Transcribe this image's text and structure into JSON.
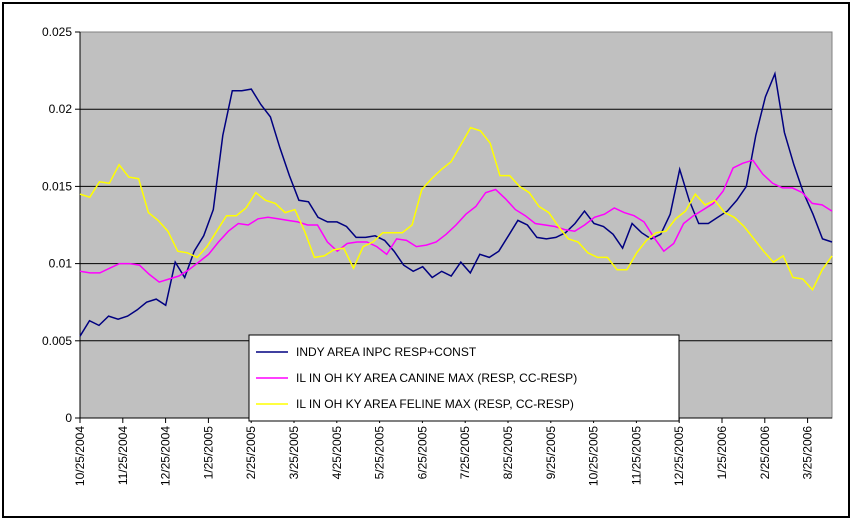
{
  "chart_data": {
    "type": "line",
    "title": "",
    "xlabel": "",
    "ylabel": "",
    "ylim": [
      0,
      0.025
    ],
    "yticks": [
      "0",
      "0.005",
      "0.01",
      "0.015",
      "0.02",
      "0.025"
    ],
    "xticks": [
      "10/25/2004",
      "11/25/2004",
      "12/25/2004",
      "1/25/2005",
      "2/25/2005",
      "3/25/2005",
      "4/25/2005",
      "5/25/2005",
      "6/25/2005",
      "7/25/2005",
      "8/25/2005",
      "9/25/2005",
      "10/25/2005",
      "11/25/2005",
      "12/25/2005",
      "1/25/2006",
      "2/25/2006",
      "3/25/2006"
    ],
    "grid": true,
    "plot_background": "#c0c0c0",
    "legend_position": "bottom-center",
    "series": [
      {
        "name": "INDY AREA INPC RESP+CONST",
        "color": "#000080",
        "values": [
          0.0053,
          0.0063,
          0.006,
          0.0066,
          0.0064,
          0.0066,
          0.007,
          0.0075,
          0.0077,
          0.0073,
          0.0101,
          0.0091,
          0.0108,
          0.0118,
          0.0135,
          0.0183,
          0.0212,
          0.0212,
          0.0213,
          0.0203,
          0.0195,
          0.0175,
          0.0157,
          0.0141,
          0.014,
          0.013,
          0.0127,
          0.0127,
          0.0124,
          0.0117,
          0.0117,
          0.0118,
          0.0115,
          0.0108,
          0.0099,
          0.0095,
          0.0098,
          0.0091,
          0.0095,
          0.0092,
          0.0101,
          0.0094,
          0.0106,
          0.0104,
          0.0108,
          0.0118,
          0.0128,
          0.0125,
          0.0117,
          0.0116,
          0.0117,
          0.012,
          0.0126,
          0.0134,
          0.0126,
          0.0124,
          0.0119,
          0.011,
          0.0126,
          0.012,
          0.0116,
          0.0119,
          0.0132,
          0.0161,
          0.0141,
          0.0126,
          0.0126,
          0.013,
          0.0134,
          0.0141,
          0.015,
          0.0183,
          0.0208,
          0.0223,
          0.0185,
          0.0164,
          0.0146,
          0.0132,
          0.0116,
          0.0114
        ]
      },
      {
        "name": "IL IN OH KY AREA CANINE MAX (RESP, CC-RESP)",
        "color": "#ff00ff",
        "values": [
          0.0095,
          0.0094,
          0.0094,
          0.0097,
          0.01,
          0.01,
          0.0099,
          0.0093,
          0.0088,
          0.009,
          0.0092,
          0.0096,
          0.0101,
          0.0106,
          0.0114,
          0.0121,
          0.0126,
          0.0125,
          0.0129,
          0.013,
          0.0129,
          0.0128,
          0.0127,
          0.0125,
          0.0125,
          0.0114,
          0.0108,
          0.0113,
          0.0114,
          0.0114,
          0.0111,
          0.0106,
          0.0116,
          0.0115,
          0.0111,
          0.0112,
          0.0114,
          0.0119,
          0.0125,
          0.0132,
          0.0137,
          0.0146,
          0.0148,
          0.0142,
          0.0135,
          0.0131,
          0.0126,
          0.0125,
          0.0124,
          0.0122,
          0.0121,
          0.0125,
          0.013,
          0.0132,
          0.0136,
          0.0133,
          0.0131,
          0.0127,
          0.0117,
          0.0108,
          0.0113,
          0.0126,
          0.0131,
          0.0135,
          0.0139,
          0.0147,
          0.0162,
          0.0165,
          0.0167,
          0.0158,
          0.0152,
          0.0149,
          0.0149,
          0.0146,
          0.0139,
          0.0138,
          0.0134
        ]
      },
      {
        "name": "IL IN OH KY AREA FELINE MAX (RESP, CC-RESP)",
        "color": "#ffff00",
        "values": [
          0.0145,
          0.0143,
          0.0153,
          0.0152,
          0.0164,
          0.0156,
          0.0155,
          0.0133,
          0.0128,
          0.0121,
          0.0108,
          0.0107,
          0.0104,
          0.0111,
          0.0121,
          0.0131,
          0.0131,
          0.0136,
          0.0146,
          0.0141,
          0.0139,
          0.0133,
          0.0135,
          0.0121,
          0.0104,
          0.0105,
          0.0109,
          0.011,
          0.0097,
          0.0111,
          0.0114,
          0.012,
          0.012,
          0.012,
          0.0125,
          0.0148,
          0.0155,
          0.0161,
          0.0166,
          0.0177,
          0.0188,
          0.0186,
          0.0178,
          0.0157,
          0.0157,
          0.015,
          0.0146,
          0.0137,
          0.0133,
          0.0124,
          0.0116,
          0.0114,
          0.0107,
          0.0104,
          0.0104,
          0.0096,
          0.0096,
          0.0107,
          0.0115,
          0.012,
          0.0121,
          0.0129,
          0.0134,
          0.0145,
          0.0138,
          0.0141,
          0.0133,
          0.013,
          0.0124,
          0.0116,
          0.0108,
          0.0101,
          0.0105,
          0.0091,
          0.009,
          0.0083,
          0.0096,
          0.0105
        ]
      }
    ]
  }
}
